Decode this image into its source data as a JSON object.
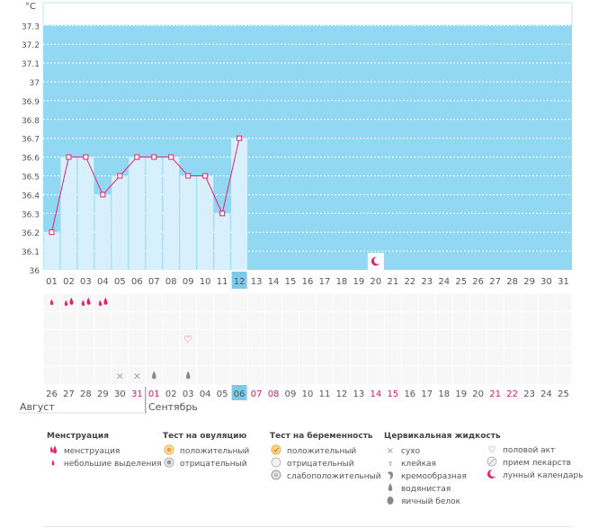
{
  "chart_data": {
    "type": "bar",
    "title": "",
    "ylabel": "°C",
    "ylim": [
      36,
      37.4
    ],
    "yticks": [
      "37.3",
      "37.2",
      "37.1",
      "37",
      "36.9",
      "36.8",
      "36.7",
      "36.6",
      "36.5",
      "36.4",
      "36.3",
      "36.2",
      "36.1",
      "36"
    ],
    "cycle_days": [
      "01",
      "02",
      "03",
      "04",
      "05",
      "06",
      "07",
      "08",
      "09",
      "10",
      "11",
      "12",
      "13",
      "14",
      "15",
      "16",
      "17",
      "18",
      "19",
      "20",
      "21",
      "22",
      "23",
      "24",
      "25",
      "26",
      "27",
      "28",
      "29",
      "30",
      "31"
    ],
    "current_day_index": 11,
    "temperature": {
      "days": [
        1,
        2,
        3,
        4,
        5,
        6,
        7,
        8,
        9,
        10,
        11,
        12
      ],
      "values": [
        36.2,
        36.6,
        36.6,
        36.4,
        36.5,
        36.6,
        36.6,
        36.6,
        36.5,
        36.5,
        36.3,
        36.7
      ]
    },
    "moon_day_index": 19,
    "calendar": {
      "dates": [
        "26",
        "27",
        "28",
        "29",
        "30",
        "31",
        "01",
        "02",
        "03",
        "04",
        "05",
        "06",
        "07",
        "08",
        "09",
        "10",
        "11",
        "12",
        "13",
        "14",
        "15",
        "16",
        "17",
        "18",
        "19",
        "20",
        "21",
        "22",
        "23",
        "24",
        "25"
      ],
      "red_dates": [
        "31",
        "01",
        "07",
        "08",
        "14",
        "15",
        "21",
        "22"
      ],
      "month_prev": "Август",
      "month_next": "Сентябрь"
    },
    "menstruation": {
      "small": [
        0
      ],
      "heavy": [
        1,
        2,
        3
      ]
    },
    "sex_days": [
      8
    ],
    "cm_dry_days": [
      4,
      5
    ],
    "cm_water_days": [
      6,
      8
    ]
  },
  "legend": {
    "menstruation": {
      "title": "Менструация",
      "items": [
        "менструация",
        "небольшие выделения"
      ]
    },
    "ovulation": {
      "title": "Тест на овуляцию",
      "items": [
        "положительный",
        "отрицательный"
      ]
    },
    "pregnancy": {
      "title": "Тест на беременность",
      "items": [
        "положительный",
        "отрицательный",
        "слабоположительный"
      ]
    },
    "cervical": {
      "title": "Цервикальная жидкость",
      "items": [
        "сухо",
        "клейкая",
        "кремообразная",
        "водянистая",
        "яичный белок"
      ]
    },
    "other": {
      "items": [
        "половой акт",
        "прием лекарств",
        "лунный календарь"
      ]
    }
  },
  "colors": {
    "plot_bg": "#92d8f2",
    "bar": "#d8f0fb",
    "line": "#e2246e",
    "current": "#7dcae8",
    "red_text": "#d81b60"
  }
}
